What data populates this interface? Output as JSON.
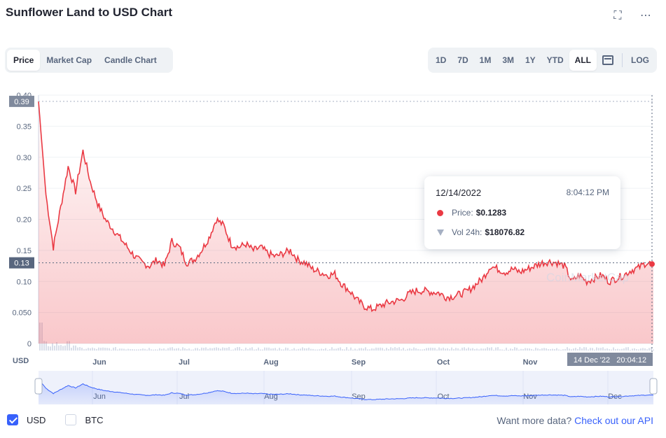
{
  "header": {
    "title": "Sunflower Land to USD Chart",
    "fullscreen_icon": "expand-icon",
    "more_icon": "ellipsis-icon"
  },
  "tabs_left": [
    {
      "label": "Price",
      "active": true
    },
    {
      "label": "Market Cap",
      "active": false
    },
    {
      "label": "Candle Chart",
      "active": false
    }
  ],
  "ranges": [
    {
      "label": "1D",
      "active": false
    },
    {
      "label": "7D",
      "active": false
    },
    {
      "label": "1M",
      "active": false
    },
    {
      "label": "3M",
      "active": false
    },
    {
      "label": "1Y",
      "active": false
    },
    {
      "label": "YTD",
      "active": false
    },
    {
      "label": "ALL",
      "active": true
    }
  ],
  "log_label": "LOG",
  "tooltip": {
    "date": "12/14/2022",
    "time": "8:04:12 PM",
    "price_label": "Price:",
    "price_value": "$0.1283",
    "vol_label": "Vol 24h:",
    "vol_value": "$18076.82"
  },
  "watermark": "CoinMarketCap",
  "currency_label": "USD",
  "crosshair_label": "14 Dec '22   20:04:12",
  "footer": {
    "usd_label": "USD",
    "btc_label": "BTC",
    "api_prefix": "Want more data?",
    "api_link": "Check out our API"
  },
  "colors": {
    "line": "#ea3943",
    "navigator": "#3861fb",
    "accent": "#3861fb"
  },
  "chart_data": {
    "type": "area",
    "ylim": [
      0,
      0.4
    ],
    "y_ticks": [
      "0",
      "0.050",
      "0.10",
      "0.15",
      "0.20",
      "0.25",
      "0.30",
      "0.35",
      "0.40"
    ],
    "y_tick_values": [
      0,
      0.05,
      0.1,
      0.15,
      0.2,
      0.25,
      0.3,
      0.35,
      0.4
    ],
    "x_ticks": [
      "Jun",
      "Jul",
      "Aug",
      "Sep",
      "Oct",
      "Nov"
    ],
    "navigator_x_ticks": [
      "Jun",
      "Jul",
      "Aug",
      "Sep",
      "Oct",
      "Nov",
      "Dec"
    ],
    "high_label": "0.39",
    "high_value": 0.39,
    "current_label": "0.13",
    "current_value": 0.13,
    "series": [
      {
        "values": [
          0.39,
          0.24,
          0.155,
          0.22,
          0.285,
          0.245,
          0.31,
          0.26,
          0.225,
          0.2,
          0.185,
          0.17,
          0.155,
          0.14,
          0.13,
          0.125,
          0.135,
          0.125,
          0.165,
          0.155,
          0.13,
          0.135,
          0.15,
          0.17,
          0.2,
          0.19,
          0.16,
          0.155,
          0.16,
          0.15,
          0.155,
          0.145,
          0.14,
          0.145,
          0.15,
          0.135,
          0.13,
          0.12,
          0.115,
          0.11,
          0.112,
          0.095,
          0.085,
          0.07,
          0.06,
          0.055,
          0.06,
          0.065,
          0.068,
          0.07,
          0.08,
          0.085,
          0.085,
          0.083,
          0.082,
          0.075,
          0.076,
          0.08,
          0.085,
          0.095,
          0.105,
          0.125,
          0.12,
          0.115,
          0.12,
          0.115,
          0.12,
          0.125,
          0.13,
          0.132,
          0.13,
          0.125,
          0.1,
          0.11,
          0.1,
          0.105,
          0.11,
          0.1,
          0.105,
          0.11,
          0.118,
          0.122,
          0.13,
          0.128
        ]
      }
    ]
  }
}
